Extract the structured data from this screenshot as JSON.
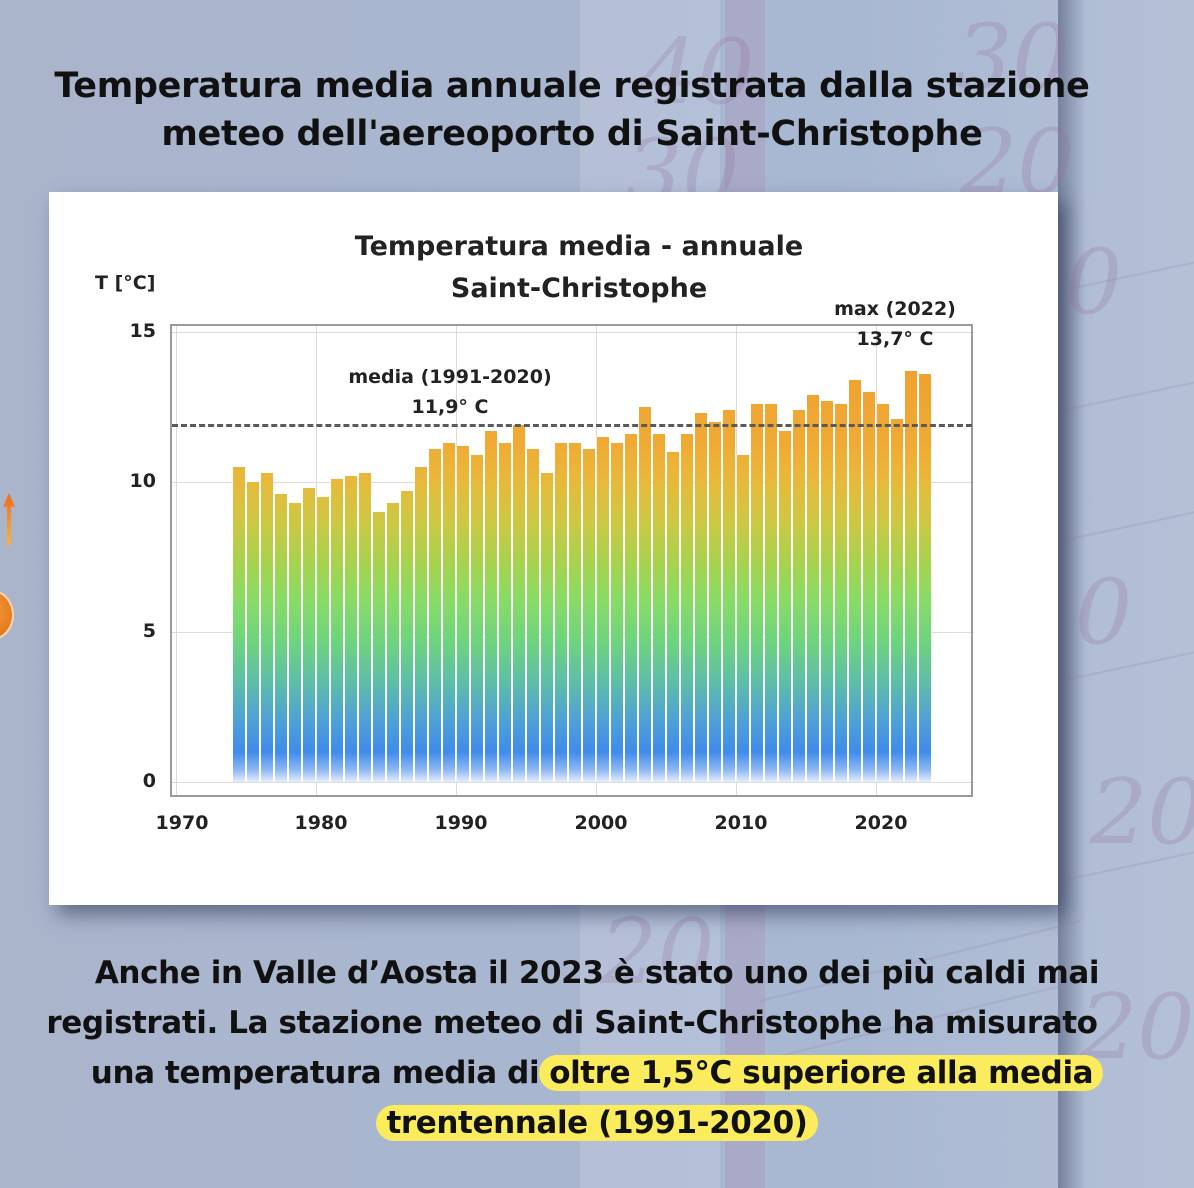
{
  "headline": {
    "line1": "Temperatura media annuale registrata dalla stazione",
    "line2": "meteo dell'aereoporto di Saint-Christophe"
  },
  "caption": {
    "line1": "Anche in Valle d’Aosta il 2023 è stato uno dei più caldi mai",
    "line2": "registrati. La stazione meteo di Saint-Christophe ha misurato",
    "line3_plain": "una temperatura media di",
    "line3_highlight": "oltre 1,5°C superiore alla media",
    "line4_highlight": "trentennale (1991-2020)",
    "highlight_color": "#fbec5d"
  },
  "background": {
    "scale_numbers": [
      "40",
      "30",
      "30",
      "20",
      "0",
      "0",
      "20",
      "20",
      "20"
    ]
  },
  "chart_data": {
    "type": "bar",
    "title": "Temperatura media - annuale",
    "subtitle": "Saint-Christophe",
    "xlabel": "",
    "ylabel": "T [°C]",
    "xlim": [
      1970,
      2027
    ],
    "ylim": [
      0,
      15
    ],
    "xticks": [
      "1970",
      "1980",
      "1990",
      "2000",
      "2010",
      "2020"
    ],
    "yticks": [
      "0",
      "5",
      "10",
      "15"
    ],
    "grid": true,
    "legend": null,
    "color_scale": "gradient by temperature: blue (0) → green (5) → yellow (9) → orange (13+)",
    "categories": [
      1974,
      1975,
      1976,
      1977,
      1978,
      1979,
      1980,
      1981,
      1982,
      1983,
      1984,
      1985,
      1986,
      1987,
      1988,
      1989,
      1990,
      1991,
      1992,
      1993,
      1994,
      1995,
      1996,
      1997,
      1998,
      1999,
      2000,
      2001,
      2002,
      2003,
      2004,
      2005,
      2006,
      2007,
      2008,
      2009,
      2010,
      2011,
      2012,
      2013,
      2014,
      2015,
      2016,
      2017,
      2018,
      2019,
      2020,
      2021,
      2022,
      2023
    ],
    "values": [
      10.5,
      10.0,
      10.3,
      9.6,
      9.3,
      9.8,
      9.5,
      10.1,
      10.2,
      10.3,
      9.0,
      9.3,
      9.7,
      10.5,
      11.1,
      11.3,
      11.2,
      10.9,
      11.7,
      11.3,
      11.9,
      11.1,
      10.3,
      11.3,
      11.3,
      11.1,
      11.5,
      11.3,
      11.6,
      12.5,
      11.6,
      11.0,
      11.6,
      12.3,
      12.0,
      12.4,
      10.9,
      12.6,
      12.6,
      11.7,
      12.4,
      12.9,
      12.7,
      12.6,
      13.4,
      13.0,
      12.6,
      12.1,
      13.7,
      13.6
    ],
    "reference_line": {
      "value": 11.9,
      "style": "dashed",
      "label_line1": "media (1991-2020)",
      "label_line2": "11,9° C"
    },
    "max_annotation": {
      "year": 2022,
      "value": 13.7,
      "label_line1": "max (2022)",
      "label_line2": "13,7° C"
    }
  }
}
